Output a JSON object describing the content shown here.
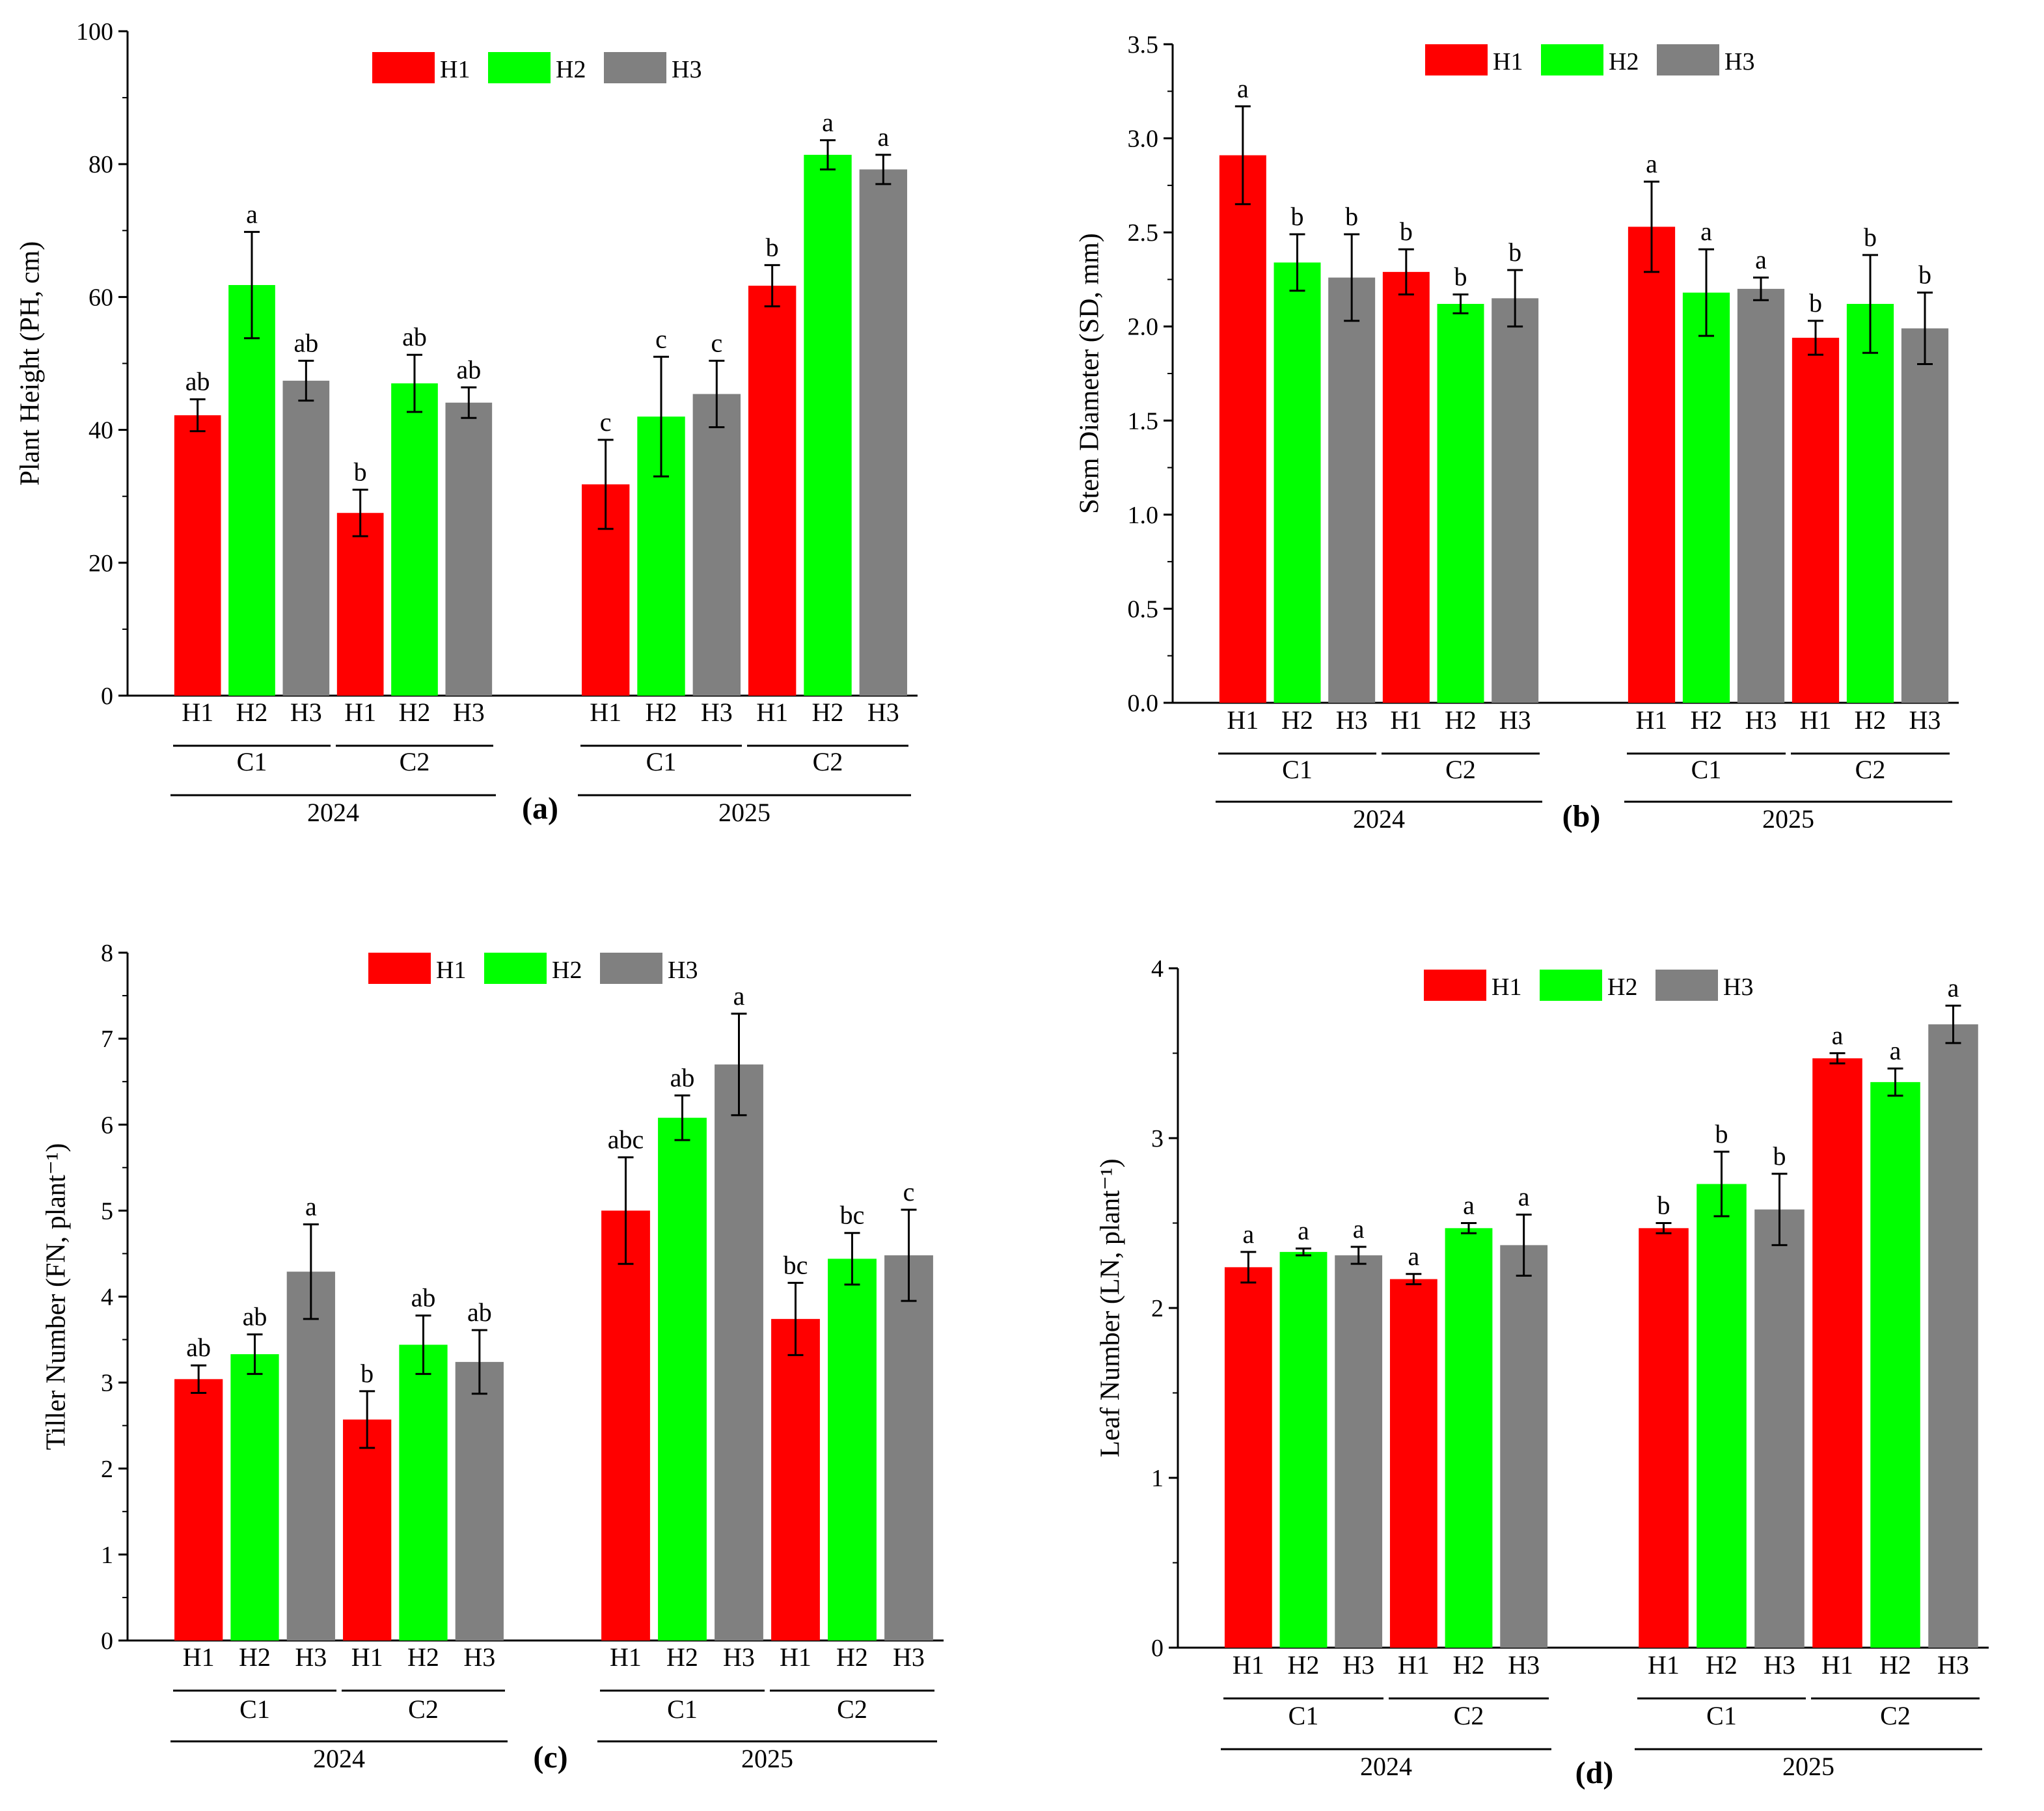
{
  "colors": {
    "H1": "#ff0000",
    "H2": "#00ff00",
    "H3": "#808080",
    "axis": "#000000"
  },
  "chart_data": [
    {
      "panel": "(a)",
      "type": "bar",
      "ylabel": "Plant Height (PH, cm)",
      "ylim": [
        0,
        100
      ],
      "yticks": [
        0,
        20,
        40,
        60,
        80,
        100
      ],
      "ytick_labels": [
        "0",
        "20",
        "40",
        "60",
        "80",
        "100"
      ],
      "legend": [
        "H1",
        "H2",
        "H3"
      ],
      "groups": [
        {
          "year": "2024",
          "subgroups": [
            {
              "name": "C1",
              "bars": [
                {
                  "label": "H1",
                  "value": 42.2,
                  "error": 2.4,
                  "sig": "ab"
                },
                {
                  "label": "H2",
                  "value": 61.8,
                  "error": 8.0,
                  "sig": "a"
                },
                {
                  "label": "H3",
                  "value": 47.4,
                  "error": 3.0,
                  "sig": "ab"
                }
              ]
            },
            {
              "name": "C2",
              "bars": [
                {
                  "label": "H1",
                  "value": 27.5,
                  "error": 3.5,
                  "sig": "b"
                },
                {
                  "label": "H2",
                  "value": 47.0,
                  "error": 4.3,
                  "sig": "ab"
                },
                {
                  "label": "H3",
                  "value": 44.1,
                  "error": 2.3,
                  "sig": "ab"
                }
              ]
            }
          ]
        },
        {
          "year": "2025",
          "subgroups": [
            {
              "name": "C1",
              "bars": [
                {
                  "label": "H1",
                  "value": 31.8,
                  "error": 6.7,
                  "sig": "c"
                },
                {
                  "label": "H2",
                  "value": 42.0,
                  "error": 9.0,
                  "sig": "c"
                },
                {
                  "label": "H3",
                  "value": 45.4,
                  "error": 5.0,
                  "sig": "c"
                }
              ]
            },
            {
              "name": "C2",
              "bars": [
                {
                  "label": "H1",
                  "value": 61.7,
                  "error": 3.1,
                  "sig": "b"
                },
                {
                  "label": "H2",
                  "value": 81.4,
                  "error": 2.2,
                  "sig": "a"
                },
                {
                  "label": "H3",
                  "value": 79.2,
                  "error": 2.2,
                  "sig": "a"
                }
              ]
            }
          ]
        }
      ]
    },
    {
      "panel": "(b)",
      "type": "bar",
      "ylabel": "Stem Diameter (SD, mm)",
      "ylim": [
        0,
        3.5
      ],
      "yticks": [
        0,
        0.5,
        1,
        1.5,
        2,
        2.5,
        3,
        3.5
      ],
      "ytick_labels": [
        "0.0",
        "0.5",
        "1.0",
        "1.5",
        "2.0",
        "2.5",
        "3.0",
        "3.5"
      ],
      "legend": [
        "H1",
        "H2",
        "H3"
      ],
      "groups": [
        {
          "year": "2024",
          "subgroups": [
            {
              "name": "C1",
              "bars": [
                {
                  "label": "H1",
                  "value": 2.91,
                  "error": 0.26,
                  "sig": "a"
                },
                {
                  "label": "H2",
                  "value": 2.34,
                  "error": 0.15,
                  "sig": "b"
                },
                {
                  "label": "H3",
                  "value": 2.26,
                  "error": 0.23,
                  "sig": "b"
                }
              ]
            },
            {
              "name": "C2",
              "bars": [
                {
                  "label": "H1",
                  "value": 2.29,
                  "error": 0.12,
                  "sig": "b"
                },
                {
                  "label": "H2",
                  "value": 2.12,
                  "error": 0.05,
                  "sig": "b"
                },
                {
                  "label": "H3",
                  "value": 2.15,
                  "error": 0.15,
                  "sig": "b"
                }
              ]
            }
          ]
        },
        {
          "year": "2025",
          "subgroups": [
            {
              "name": "C1",
              "bars": [
                {
                  "label": "H1",
                  "value": 2.53,
                  "error": 0.24,
                  "sig": "a"
                },
                {
                  "label": "H2",
                  "value": 2.18,
                  "error": 0.23,
                  "sig": "a"
                },
                {
                  "label": "H3",
                  "value": 2.2,
                  "error": 0.06,
                  "sig": "a"
                }
              ]
            },
            {
              "name": "C2",
              "bars": [
                {
                  "label": "H1",
                  "value": 1.94,
                  "error": 0.09,
                  "sig": "b"
                },
                {
                  "label": "H2",
                  "value": 2.12,
                  "error": 0.26,
                  "sig": "b"
                },
                {
                  "label": "H3",
                  "value": 1.99,
                  "error": 0.19,
                  "sig": "b"
                }
              ]
            }
          ]
        }
      ]
    },
    {
      "panel": "(c)",
      "type": "bar",
      "ylabel": "Tiller Number (FN, plant⁻¹)",
      "ylim": [
        0,
        8
      ],
      "yticks": [
        0,
        1,
        2,
        3,
        4,
        5,
        6,
        7,
        8
      ],
      "ytick_labels": [
        "0",
        "1",
        "2",
        "3",
        "4",
        "5",
        "6",
        "7",
        "8"
      ],
      "legend": [
        "H1",
        "H2",
        "H3"
      ],
      "groups": [
        {
          "year": "2024",
          "subgroups": [
            {
              "name": "C1",
              "bars": [
                {
                  "label": "H1",
                  "value": 3.04,
                  "error": 0.16,
                  "sig": "ab"
                },
                {
                  "label": "H2",
                  "value": 3.33,
                  "error": 0.23,
                  "sig": "ab"
                },
                {
                  "label": "H3",
                  "value": 4.29,
                  "error": 0.55,
                  "sig": "a"
                }
              ]
            },
            {
              "name": "C2",
              "bars": [
                {
                  "label": "H1",
                  "value": 2.57,
                  "error": 0.33,
                  "sig": "b"
                },
                {
                  "label": "H2",
                  "value": 3.44,
                  "error": 0.34,
                  "sig": "ab"
                },
                {
                  "label": "H3",
                  "value": 3.24,
                  "error": 0.37,
                  "sig": "ab"
                }
              ]
            }
          ]
        },
        {
          "year": "2025",
          "subgroups": [
            {
              "name": "C1",
              "bars": [
                {
                  "label": "H1",
                  "value": 5.0,
                  "error": 0.62,
                  "sig": "abc"
                },
                {
                  "label": "H2",
                  "value": 6.08,
                  "error": 0.26,
                  "sig": "ab"
                },
                {
                  "label": "H3",
                  "value": 6.7,
                  "error": 0.59,
                  "sig": "a"
                }
              ]
            },
            {
              "name": "C2",
              "bars": [
                {
                  "label": "H1",
                  "value": 3.74,
                  "error": 0.42,
                  "sig": "bc"
                },
                {
                  "label": "H2",
                  "value": 4.44,
                  "error": 0.3,
                  "sig": "bc"
                },
                {
                  "label": "H3",
                  "value": 4.48,
                  "error": 0.53,
                  "sig": "c"
                }
              ]
            }
          ]
        }
      ]
    },
    {
      "panel": "(d)",
      "type": "bar",
      "ylabel": "Leaf Number (LN, plant⁻¹)",
      "ylim": [
        0,
        4
      ],
      "yticks": [
        0,
        1,
        2,
        3,
        4
      ],
      "ytick_labels": [
        "0",
        "1",
        "2",
        "3",
        "4"
      ],
      "legend": [
        "H1",
        "H2",
        "H3"
      ],
      "groups": [
        {
          "year": "2024",
          "subgroups": [
            {
              "name": "C1",
              "bars": [
                {
                  "label": "H1",
                  "value": 2.24,
                  "error": 0.09,
                  "sig": "a"
                },
                {
                  "label": "H2",
                  "value": 2.33,
                  "error": 0.02,
                  "sig": "a"
                },
                {
                  "label": "H3",
                  "value": 2.31,
                  "error": 0.05,
                  "sig": "a"
                }
              ]
            },
            {
              "name": "C2",
              "bars": [
                {
                  "label": "H1",
                  "value": 2.17,
                  "error": 0.03,
                  "sig": "a"
                },
                {
                  "label": "H2",
                  "value": 2.47,
                  "error": 0.03,
                  "sig": "a"
                },
                {
                  "label": "H3",
                  "value": 2.37,
                  "error": 0.18,
                  "sig": "a"
                }
              ]
            }
          ]
        },
        {
          "year": "2025",
          "subgroups": [
            {
              "name": "C1",
              "bars": [
                {
                  "label": "H1",
                  "value": 2.47,
                  "error": 0.03,
                  "sig": "b"
                },
                {
                  "label": "H2",
                  "value": 2.73,
                  "error": 0.19,
                  "sig": "b"
                },
                {
                  "label": "H3",
                  "value": 2.58,
                  "error": 0.21,
                  "sig": "b"
                }
              ]
            },
            {
              "name": "C2",
              "bars": [
                {
                  "label": "H1",
                  "value": 3.47,
                  "error": 0.03,
                  "sig": "a"
                },
                {
                  "label": "H2",
                  "value": 3.33,
                  "error": 0.08,
                  "sig": "a"
                },
                {
                  "label": "H3",
                  "value": 3.67,
                  "error": 0.11,
                  "sig": "a"
                }
              ]
            }
          ]
        }
      ]
    }
  ]
}
